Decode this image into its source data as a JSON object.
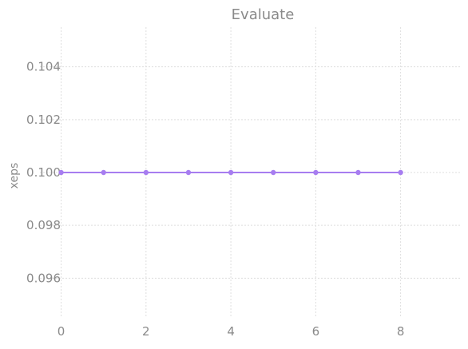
{
  "chart_data": {
    "type": "line",
    "title": "Evaluate",
    "xlabel": "",
    "ylabel": "xeps",
    "x": [
      0,
      1,
      2,
      3,
      4,
      5,
      6,
      7,
      8
    ],
    "series": [
      {
        "values": [
          0.1,
          0.1,
          0.1,
          0.1,
          0.1,
          0.1,
          0.1,
          0.1,
          0.1
        ],
        "color": "#a77df0"
      }
    ],
    "xlim": [
      -0.5,
      9.4
    ],
    "ylim": [
      0.0945,
      0.1055
    ],
    "xticks": [
      "0",
      "2",
      "4",
      "6",
      "8"
    ],
    "yticks": [
      "0.096",
      "0.098",
      "0.100",
      "0.102",
      "0.104"
    ],
    "grid": true,
    "legend": "none"
  }
}
